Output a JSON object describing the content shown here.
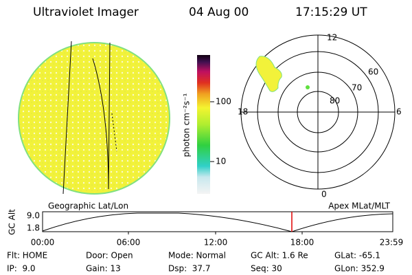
{
  "header": {
    "instrument": "Ultraviolet Imager",
    "date": "04 Aug 00",
    "time": "17:15:29 UT"
  },
  "colorbar": {
    "label": "photon cm⁻²s⁻¹",
    "ticks": [
      "100",
      "10"
    ]
  },
  "polar": {
    "mlt_labels": [
      "12",
      "18",
      "6",
      "0"
    ],
    "lat_labels": [
      "60",
      "70",
      "80"
    ]
  },
  "orbit": {
    "title_left": "Geographic Lat/Lon",
    "title_right": "Apex MLat/MLT",
    "y_label": "GC Alt",
    "y_ticks": [
      "9.0",
      "1.8"
    ],
    "x_ticks": [
      "00:00",
      "06:00",
      "12:00",
      "18:00",
      "23:59"
    ]
  },
  "info": {
    "rows": [
      [
        "Flt: HOME",
        "Door: Open",
        "Mode: Normal",
        "GC Alt: 1.6 Re",
        "GLat: -65.1"
      ],
      [
        "IP:  9.0",
        "Gain: 13",
        "Dsp:  37.7",
        "Seq: 30",
        "GLon: 352.9"
      ]
    ]
  }
}
